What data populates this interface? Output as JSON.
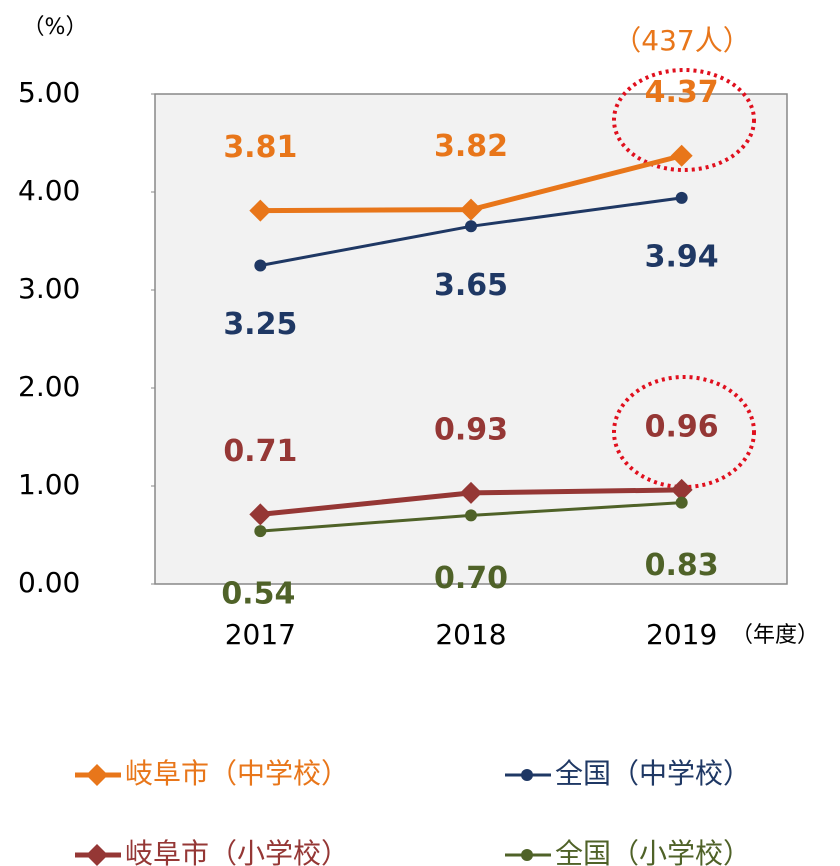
{
  "chart_data": {
    "type": "line",
    "y_unit_label": "（%）",
    "x_axis_label": "（年度）",
    "annotations": [
      "（437人）"
    ],
    "categories": [
      "2017",
      "2018",
      "2019"
    ],
    "series": [
      {
        "name": "岐阜市（中学校）",
        "color": "#e8761a",
        "marker": "diamond",
        "values": [
          3.81,
          3.82,
          4.37
        ],
        "value_labels": [
          "3.81",
          "3.82",
          "4.37"
        ]
      },
      {
        "name": "全国（中学校）",
        "color": "#1f3864",
        "marker": "circle",
        "values": [
          3.25,
          3.65,
          3.94
        ],
        "value_labels": [
          "3.25",
          "3.65",
          "3.94"
        ]
      },
      {
        "name": "岐阜市（小学校）",
        "color": "#953735",
        "marker": "diamond",
        "values": [
          0.71,
          0.93,
          0.96
        ],
        "value_labels": [
          "0.71",
          "0.93",
          "0.96"
        ]
      },
      {
        "name": "全国（小学校）",
        "color": "#4f6228",
        "marker": "circle",
        "values": [
          0.54,
          0.7,
          0.83
        ],
        "value_labels": [
          "0.54",
          "0.70",
          "0.83"
        ]
      }
    ],
    "ylim": [
      0,
      5
    ],
    "yticks": [
      {
        "value": 0,
        "label": "0.00"
      },
      {
        "value": 1,
        "label": "1.00"
      },
      {
        "value": 2,
        "label": "2.00"
      },
      {
        "value": 3,
        "label": "3.00"
      },
      {
        "value": 4,
        "label": "4.00"
      },
      {
        "value": 5,
        "label": "5.00"
      }
    ],
    "grid": false
  }
}
